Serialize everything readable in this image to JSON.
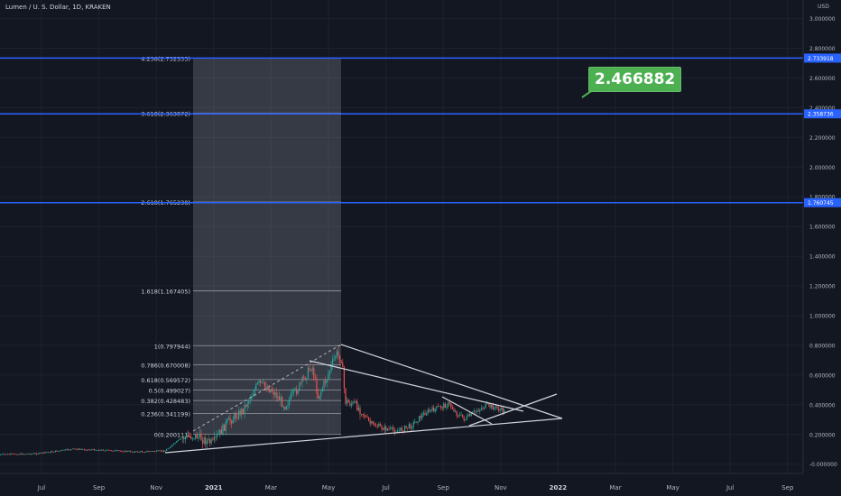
{
  "header": {
    "title": "Lumen / U. S. Dollar, 1D, KRAKEN",
    "currency": "USD"
  },
  "callout": {
    "label": "2.466882"
  },
  "price_axis": {
    "ticks": [
      {
        "value": 3.0,
        "label": "3.000000"
      },
      {
        "value": 2.8,
        "label": "2.800000"
      },
      {
        "value": 2.6,
        "label": "2.600000"
      },
      {
        "value": 2.4,
        "label": "2.400000"
      },
      {
        "value": 2.2,
        "label": "2.200000"
      },
      {
        "value": 2.0,
        "label": "2.000000"
      },
      {
        "value": 1.8,
        "label": "1.800000"
      },
      {
        "value": 1.6,
        "label": "1.600000"
      },
      {
        "value": 1.4,
        "label": "1.400000"
      },
      {
        "value": 1.2,
        "label": "1.200000"
      },
      {
        "value": 1.0,
        "label": "1.000000"
      },
      {
        "value": 0.8,
        "label": "0.800000"
      },
      {
        "value": 0.6,
        "label": "0.600000"
      },
      {
        "value": 0.4,
        "label": "0.400000"
      },
      {
        "value": 0.2,
        "label": "0.200000"
      },
      {
        "value": 0.0,
        "label": "-0.000000"
      }
    ],
    "badges": [
      {
        "value": 2.733918,
        "label": "2.733918"
      },
      {
        "value": 2.358736,
        "label": "2.358736"
      },
      {
        "value": 1.760745,
        "label": "1.760745"
      }
    ]
  },
  "time_axis": {
    "labels": [
      {
        "label": "Jul",
        "month": 6
      },
      {
        "label": "Sep",
        "month": 8
      },
      {
        "label": "Nov",
        "month": 10
      },
      {
        "label": "2021",
        "month": 12
      },
      {
        "label": "Mar",
        "month": 14
      },
      {
        "label": "May",
        "month": 16
      },
      {
        "label": "Jul",
        "month": 18
      },
      {
        "label": "Sep",
        "month": 20
      },
      {
        "label": "Nov",
        "month": 22
      },
      {
        "label": "2022",
        "month": 24
      },
      {
        "label": "Mar",
        "month": 26
      },
      {
        "label": "May",
        "month": 28
      },
      {
        "label": "Jul",
        "month": 30
      },
      {
        "label": "Sep",
        "month": 32
      }
    ]
  },
  "fib_levels": [
    {
      "label": "4.236(2.732533)",
      "value": 2.732533
    },
    {
      "label": "3.618(2.363072)",
      "value": 2.363072
    },
    {
      "label": "2.618(1.765238)",
      "value": 1.765238
    },
    {
      "label": "1.618(1.167405)",
      "value": 1.167405
    },
    {
      "label": "1(0.797944)",
      "value": 0.797944
    },
    {
      "label": "0.786(0.670008)",
      "value": 0.670008
    },
    {
      "label": "0.618(0.569572)",
      "value": 0.569572
    },
    {
      "label": "0.5(0.499027)",
      "value": 0.499027
    },
    {
      "label": "0.382(0.428483)",
      "value": 0.428483
    },
    {
      "label": "0.236(0.341199)",
      "value": 0.341199
    },
    {
      "label": "0(0.200111)",
      "value": 0.200111
    }
  ],
  "colors": {
    "background": "#131722",
    "grid": "#1e222d",
    "up": "#26a69a",
    "down": "#ef5350",
    "blue_line": "#2962ff",
    "callout": "#4caf50",
    "axis_text": "#b2b5be"
  }
}
